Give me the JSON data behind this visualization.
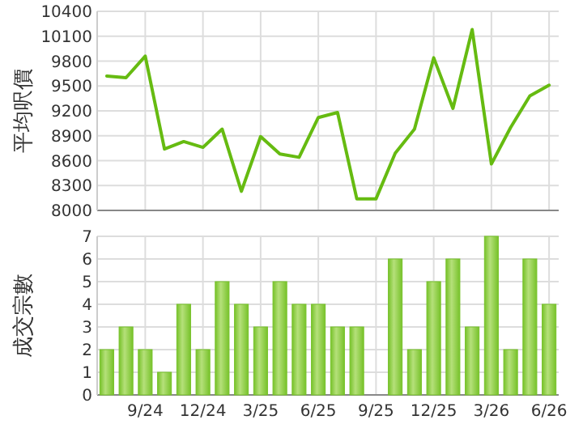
{
  "chart_data": [
    {
      "type": "line",
      "ylabel": "平均呎價",
      "categories": [
        null,
        null,
        null,
        null,
        null,
        null,
        null,
        null,
        null,
        null,
        null,
        null,
        null,
        null,
        null,
        null,
        null,
        null,
        null,
        null,
        null,
        null,
        null,
        null
      ],
      "series": [
        {
          "color": "#66bb11",
          "values": [
            9620,
            9600,
            9860,
            8740,
            8830,
            8760,
            8980,
            8230,
            8890,
            8680,
            8640,
            9120,
            9180,
            8140,
            8140,
            8690,
            8980,
            9840,
            9230,
            10180,
            8560,
            9000,
            9380,
            9510
          ]
        }
      ],
      "ylim": [
        8000,
        10400
      ],
      "yticks": [
        8000,
        8300,
        8600,
        8900,
        9200,
        9500,
        9800,
        10100,
        10400
      ],
      "grid": true,
      "tick_labels": "y"
    },
    {
      "type": "bar",
      "ylabel": "成交宗數",
      "categories": [
        null,
        null,
        "9/24",
        null,
        null,
        "12/24",
        null,
        null,
        "3/25",
        null,
        null,
        "6/25",
        null,
        null,
        "9/25",
        null,
        null,
        "12/25",
        null,
        null,
        "3/26",
        null,
        null,
        "6/26"
      ],
      "series": [
        {
          "color": "#77c22a",
          "values": [
            2,
            3,
            2,
            1,
            4,
            2,
            5,
            4,
            3,
            5,
            4,
            4,
            3,
            3,
            0,
            6,
            2,
            5,
            6,
            3,
            7,
            2,
            6,
            4
          ]
        }
      ],
      "ylim": [
        0,
        7
      ],
      "yticks": [
        0,
        1,
        2,
        3,
        4,
        5,
        6,
        7
      ],
      "grid": true
    }
  ]
}
